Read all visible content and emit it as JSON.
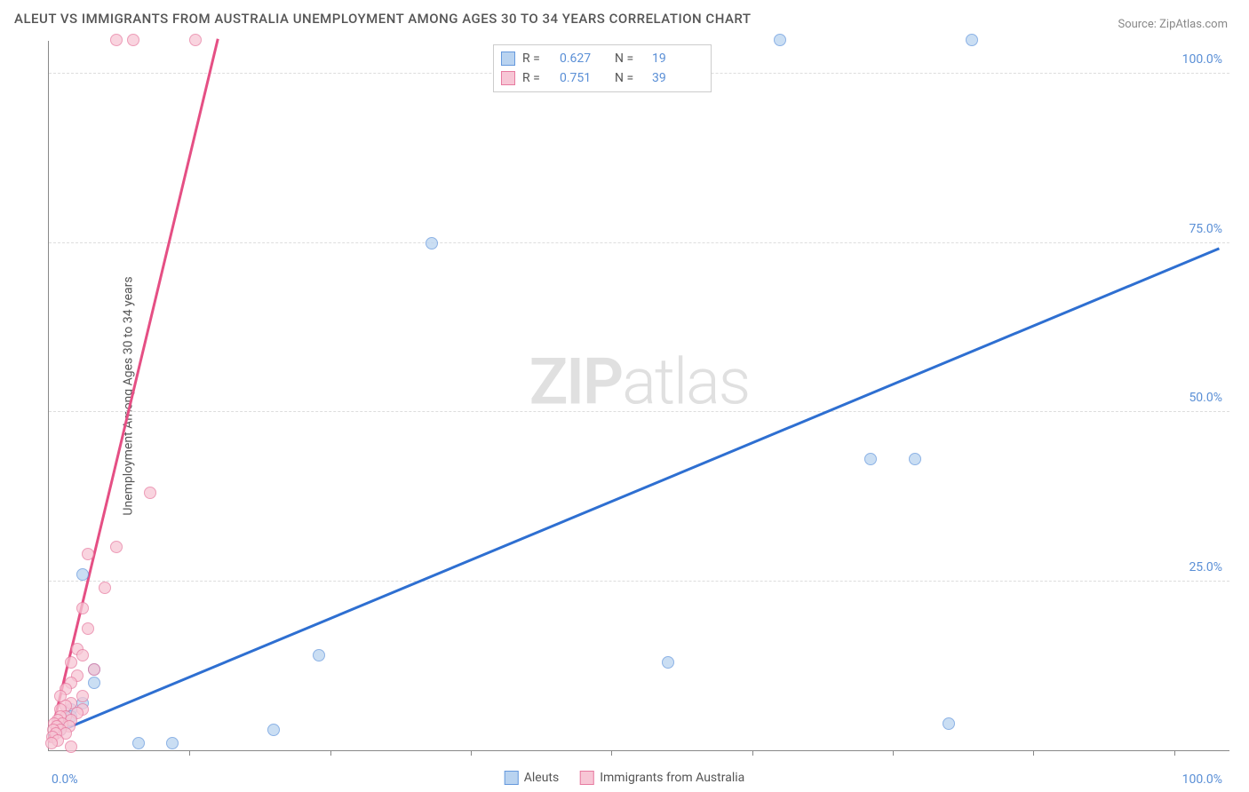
{
  "title": "ALEUT VS IMMIGRANTS FROM AUSTRALIA UNEMPLOYMENT AMONG AGES 30 TO 34 YEARS CORRELATION CHART",
  "source": "Source: ZipAtlas.com",
  "ylabel": "Unemployment Among Ages 30 to 34 years",
  "watermark_bold": "ZIP",
  "watermark_light": "atlas",
  "chart": {
    "type": "scatter",
    "xlim": [
      0,
      105
    ],
    "ylim": [
      0,
      105
    ],
    "xtick_labels": [
      "0.0%",
      "100.0%"
    ],
    "ytick_labels": [
      "25.0%",
      "50.0%",
      "75.0%",
      "100.0%"
    ],
    "ytick_values": [
      25,
      50,
      75,
      100
    ],
    "gridline_values": [
      25,
      50,
      75,
      100
    ],
    "vtick_values": [
      12.5,
      25,
      37.5,
      50,
      62.5,
      75,
      87.5,
      100
    ],
    "background_color": "#ffffff",
    "grid_color": "#dddddd",
    "axis_color": "#888888",
    "tick_label_color": "#5a8fd6",
    "point_radius": 7,
    "point_opacity": 0.75,
    "series": [
      {
        "name": "Aleuts",
        "fill_color": "#b9d3f0",
        "stroke_color": "#6699dd",
        "trend_color": "#2e6fd1",
        "trend_width": 2.5,
        "R": "0.627",
        "N": "19",
        "trend": {
          "x1": 0,
          "y1": 2,
          "x2": 104,
          "y2": 74
        },
        "points": [
          {
            "x": 65,
            "y": 105
          },
          {
            "x": 82,
            "y": 105
          },
          {
            "x": 34,
            "y": 75
          },
          {
            "x": 73,
            "y": 43
          },
          {
            "x": 77,
            "y": 43
          },
          {
            "x": 55,
            "y": 13
          },
          {
            "x": 24,
            "y": 14
          },
          {
            "x": 80,
            "y": 4
          },
          {
            "x": 20,
            "y": 3
          },
          {
            "x": 11,
            "y": 1
          },
          {
            "x": 8,
            "y": 1
          },
          {
            "x": 3,
            "y": 26
          },
          {
            "x": 4,
            "y": 12
          },
          {
            "x": 4,
            "y": 10
          },
          {
            "x": 3,
            "y": 7
          },
          {
            "x": 2,
            "y": 6
          },
          {
            "x": 2,
            "y": 5
          },
          {
            "x": 1.5,
            "y": 4
          },
          {
            "x": 1,
            "y": 3
          }
        ]
      },
      {
        "name": "Immigrants from Australia",
        "fill_color": "#f7c6d5",
        "stroke_color": "#e77ba0",
        "trend_color": "#e54f84",
        "trend_width": 2.5,
        "R": "0.751",
        "N": "39",
        "trend": {
          "x1": 0,
          "y1": 1,
          "x2": 15,
          "y2": 105
        },
        "points": [
          {
            "x": 6,
            "y": 105
          },
          {
            "x": 7.5,
            "y": 105
          },
          {
            "x": 13,
            "y": 105
          },
          {
            "x": 9,
            "y": 38
          },
          {
            "x": 6,
            "y": 30
          },
          {
            "x": 3.5,
            "y": 29
          },
          {
            "x": 5,
            "y": 24
          },
          {
            "x": 3,
            "y": 21
          },
          {
            "x": 3.5,
            "y": 18
          },
          {
            "x": 2.5,
            "y": 15
          },
          {
            "x": 3,
            "y": 14
          },
          {
            "x": 2,
            "y": 13
          },
          {
            "x": 4,
            "y": 12
          },
          {
            "x": 2.5,
            "y": 11
          },
          {
            "x": 2,
            "y": 10
          },
          {
            "x": 1.5,
            "y": 9
          },
          {
            "x": 3,
            "y": 8
          },
          {
            "x": 1,
            "y": 8
          },
          {
            "x": 2,
            "y": 7
          },
          {
            "x": 1.5,
            "y": 6.5
          },
          {
            "x": 3,
            "y": 6
          },
          {
            "x": 1,
            "y": 6
          },
          {
            "x": 2.5,
            "y": 5.5
          },
          {
            "x": 1.5,
            "y": 5
          },
          {
            "x": 1,
            "y": 5
          },
          {
            "x": 2,
            "y": 4.5
          },
          {
            "x": 0.8,
            "y": 4.5
          },
          {
            "x": 1.2,
            "y": 4
          },
          {
            "x": 0.5,
            "y": 4
          },
          {
            "x": 1.8,
            "y": 3.5
          },
          {
            "x": 0.7,
            "y": 3.5
          },
          {
            "x": 1,
            "y": 3
          },
          {
            "x": 0.4,
            "y": 3
          },
          {
            "x": 1.5,
            "y": 2.5
          },
          {
            "x": 0.6,
            "y": 2.5
          },
          {
            "x": 0.3,
            "y": 2
          },
          {
            "x": 0.8,
            "y": 1.5
          },
          {
            "x": 0.2,
            "y": 1
          },
          {
            "x": 2,
            "y": 0.5
          }
        ]
      }
    ]
  },
  "legend_top_labels": {
    "R": "R =",
    "N": "N ="
  },
  "legend_bottom": [
    "Aleuts",
    "Immigrants from Australia"
  ]
}
